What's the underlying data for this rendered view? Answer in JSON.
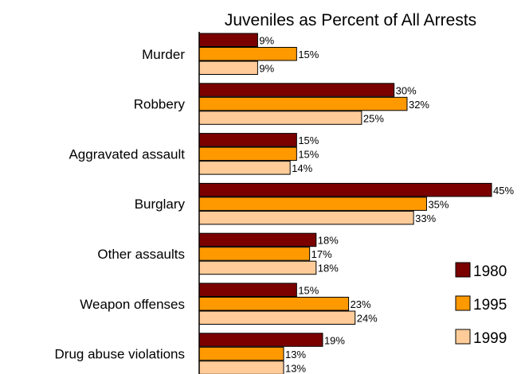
{
  "chart_data": {
    "type": "bar",
    "orientation": "horizontal",
    "title": "Juveniles as Percent of All Arrests",
    "categories": [
      "Murder",
      "Robbery",
      "Aggravated assault",
      "Burglary",
      "Other assaults",
      "Weapon offenses",
      "Drug abuse violations"
    ],
    "series": [
      {
        "name": "1980",
        "color": "#7b0000",
        "values": [
          9,
          30,
          15,
          45,
          18,
          15,
          19
        ]
      },
      {
        "name": "1995",
        "color": "#ff9900",
        "values": [
          15,
          32,
          15,
          35,
          17,
          23,
          13
        ]
      },
      {
        "name": "1999",
        "color": "#ffcc99",
        "values": [
          9,
          25,
          14,
          33,
          18,
          24,
          13
        ]
      }
    ],
    "value_suffix": "%",
    "xlim": [
      0,
      45
    ],
    "grid": false,
    "legend_position": "right"
  }
}
